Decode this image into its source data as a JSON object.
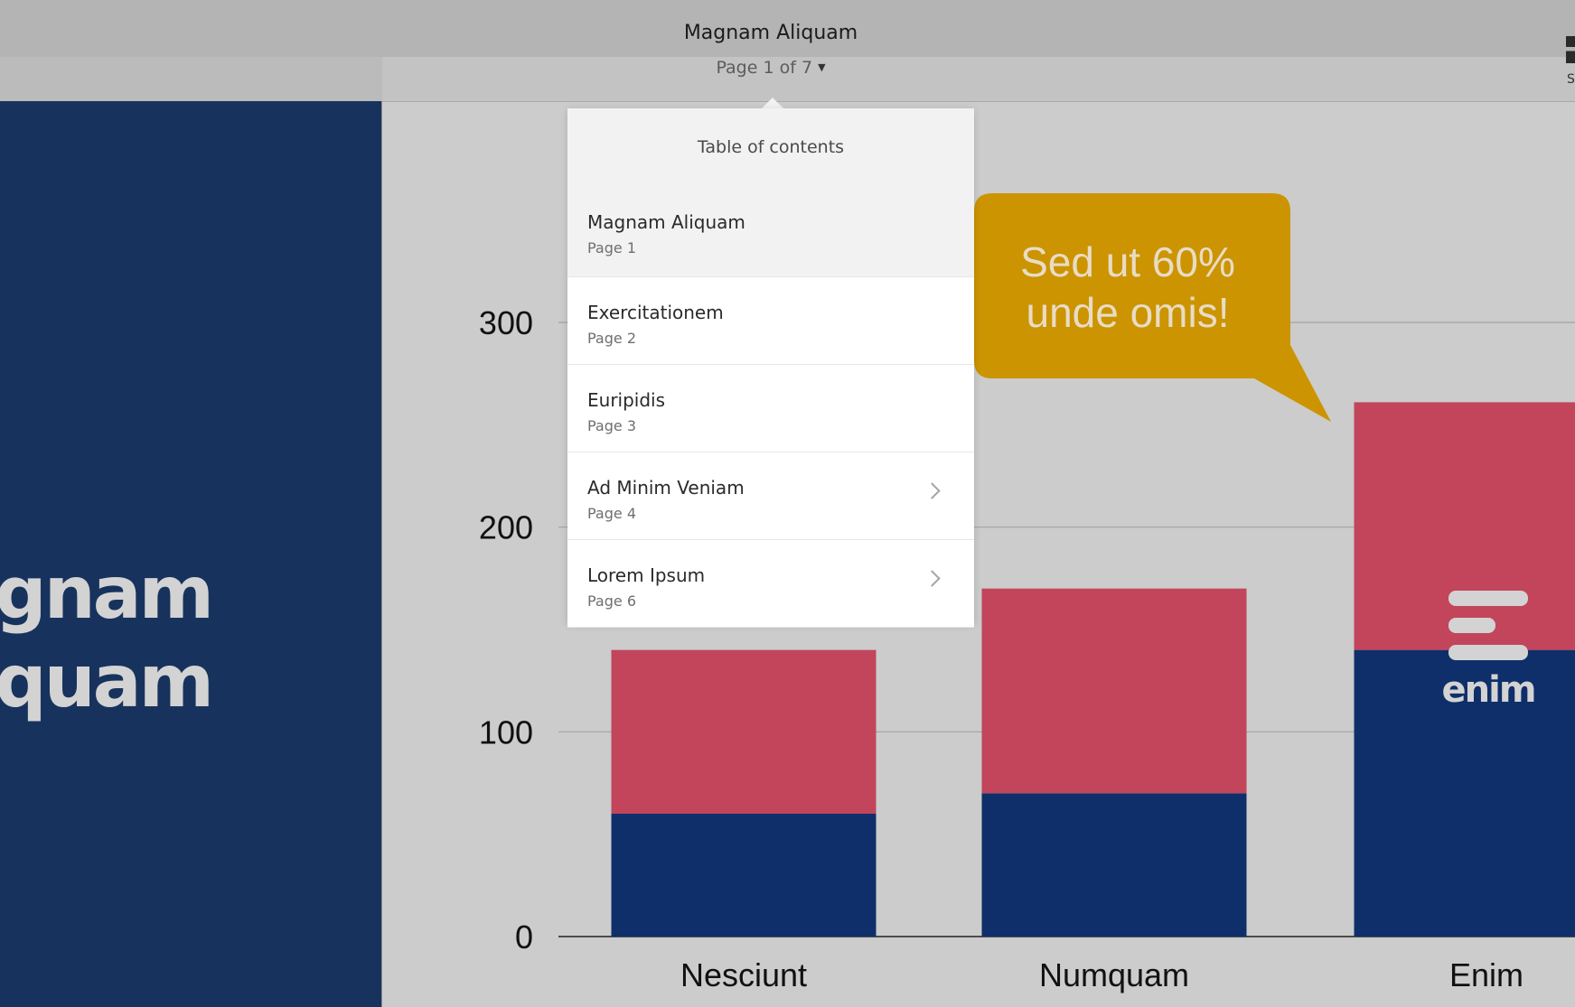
{
  "header": {
    "doc_title": "Magnam Aliquam",
    "page_indicator": "Page 1 of 7",
    "share_label": "S"
  },
  "sidebar_slide": {
    "title_line1": "ignam",
    "title_line2": "iquam",
    "background": "#17335d"
  },
  "toc": {
    "header": "Table of contents",
    "items": [
      {
        "title": "Magnam Aliquam",
        "page": "Page 1",
        "active": true,
        "has_children": false
      },
      {
        "title": "Exercitationem",
        "page": "Page 2",
        "active": false,
        "has_children": false
      },
      {
        "title": "Euripidis",
        "page": "Page 3",
        "active": false,
        "has_children": false
      },
      {
        "title": "Ad Minim Veniam",
        "page": "Page 4",
        "active": false,
        "has_children": true
      },
      {
        "title": "Lorem Ipsum",
        "page": "Page 6",
        "active": false,
        "has_children": true
      }
    ]
  },
  "callout": {
    "line1": "Sed ut 60%",
    "line2": "unde omis!",
    "color": "#cc9400"
  },
  "badge": {
    "text": "enim"
  },
  "chart_data": {
    "type": "bar",
    "stacked": true,
    "categories": [
      "Nesciunt",
      "Numquam",
      "Enim"
    ],
    "series": [
      {
        "color": "#0f2f6b",
        "values": [
          60,
          70,
          140
        ]
      },
      {
        "color": "#c2455b",
        "values": [
          80,
          100,
          121
        ]
      }
    ],
    "ylim": [
      0,
      340
    ],
    "yticks": [
      0,
      100,
      200,
      300
    ],
    "ytick_labels": [
      "0",
      "100",
      "200",
      "300"
    ],
    "grid": true
  }
}
